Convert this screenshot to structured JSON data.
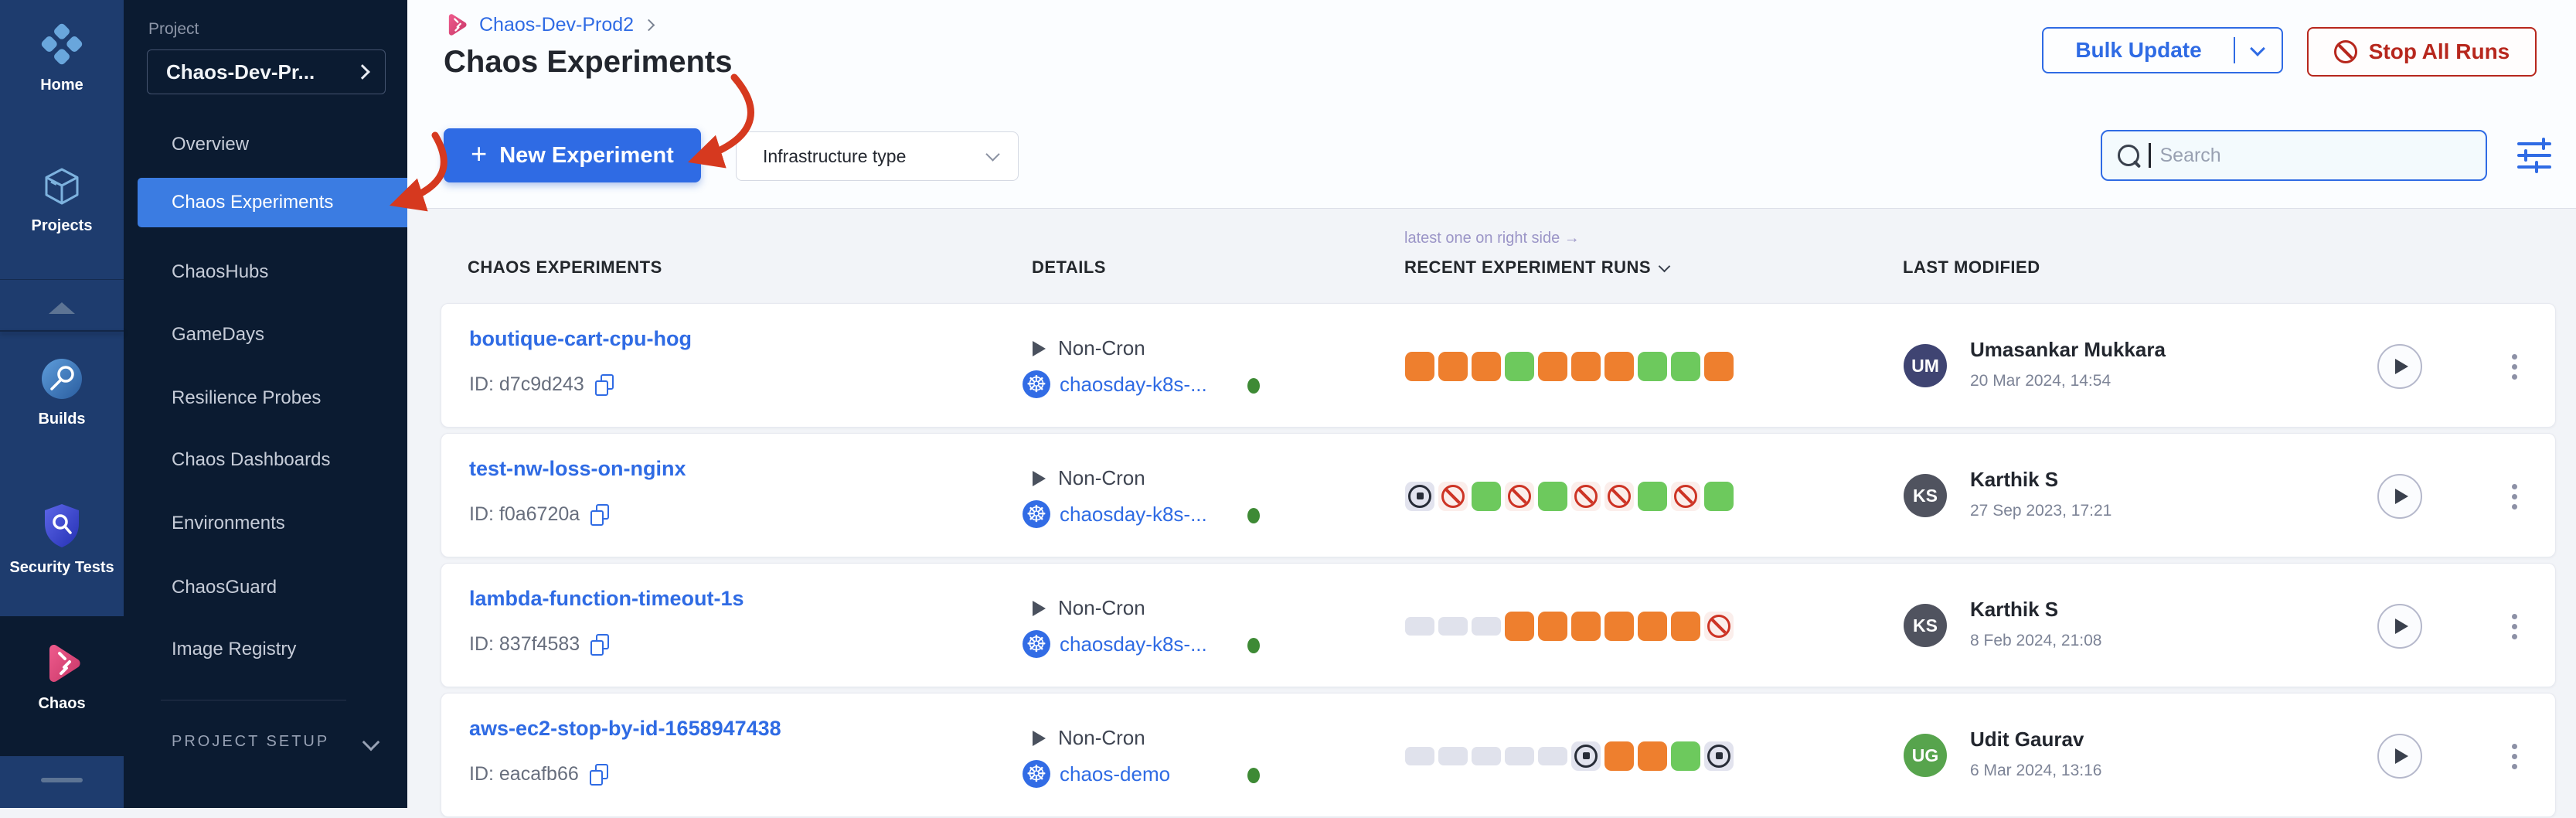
{
  "app": {
    "accent_color": "#2f6be4",
    "danger_color": "#b7271d",
    "annotation_arrow_color": "#d6391f"
  },
  "rail": {
    "items": [
      {
        "id": "home",
        "label": "Home"
      },
      {
        "id": "projects",
        "label": "Projects"
      },
      {
        "id": "builds",
        "label": "Builds"
      },
      {
        "id": "security-tests",
        "label": "Security Tests"
      },
      {
        "id": "chaos",
        "label": "Chaos",
        "selected": true
      }
    ]
  },
  "sidebar": {
    "section_label": "Project",
    "project_name": "Chaos-Dev-Pr...",
    "items": [
      {
        "label": "Overview"
      },
      {
        "label": "Chaos Experiments",
        "selected": true
      },
      {
        "label": "ChaosHubs"
      },
      {
        "label": "GameDays"
      },
      {
        "label": "Resilience Probes"
      },
      {
        "label": "Chaos Dashboards"
      },
      {
        "label": "Environments"
      },
      {
        "label": "ChaosGuard"
      },
      {
        "label": "Image Registry"
      }
    ],
    "footer_label": "PROJECT SETUP"
  },
  "header": {
    "breadcrumb": "Chaos-Dev-Prod2",
    "title": "Chaos Experiments",
    "bulk_update_label": "Bulk Update",
    "stop_all_runs_label": "Stop All Runs"
  },
  "toolbar": {
    "plus_icon": "+",
    "new_experiment_label": "New Experiment",
    "infra_type_label": "Infrastructure type",
    "search_placeholder": "Search"
  },
  "table": {
    "runs_note": "latest one on right side →",
    "columns": {
      "experiments": "CHAOS EXPERIMENTS",
      "details": "DETAILS",
      "runs": "RECENT EXPERIMENT RUNS",
      "modified": "LAST MODIFIED"
    }
  },
  "run_status_colors": {
    "success": "#6dc95d",
    "warning": "#ee7f2e",
    "failed": "#cd3425",
    "stopped": "#2a2f3a",
    "none": "#e0e2ec"
  },
  "rows": [
    {
      "name": "boutique-cart-cpu-hog",
      "id_label": "ID: d7c9d243",
      "schedule": "Non-Cron",
      "infra": "chaosday-k8s-...",
      "runs": [
        "warning",
        "warning",
        "warning",
        "success",
        "warning",
        "warning",
        "warning",
        "success",
        "success",
        "warning"
      ],
      "user": {
        "initials": "UM",
        "name": "Umasankar Mukkara",
        "date": "20 Mar 2024, 14:54",
        "color": "#3f4472"
      }
    },
    {
      "name": "test-nw-loss-on-nginx",
      "id_label": "ID: f0a6720a",
      "schedule": "Non-Cron",
      "infra": "chaosday-k8s-...",
      "runs": [
        "stopped",
        "failed",
        "success",
        "failed",
        "success",
        "failed",
        "failed",
        "success",
        "failed",
        "success"
      ],
      "user": {
        "initials": "KS",
        "name": "Karthik S",
        "date": "27 Sep 2023, 17:21",
        "color": "#50535f"
      }
    },
    {
      "name": "lambda-function-timeout-1s",
      "id_label": "ID: 837f4583",
      "schedule": "Non-Cron",
      "infra": "chaosday-k8s-...",
      "runs": [
        "none",
        "none",
        "none",
        "warning",
        "warning",
        "warning",
        "warning",
        "warning",
        "warning",
        "failed"
      ],
      "user": {
        "initials": "KS",
        "name": "Karthik S",
        "date": "8 Feb 2024, 21:08",
        "color": "#50535f"
      }
    },
    {
      "name": "aws-ec2-stop-by-id-1658947438",
      "id_label": "ID: eacafb66",
      "schedule": "Non-Cron",
      "infra": "chaos-demo",
      "runs": [
        "none",
        "none",
        "none",
        "none",
        "none",
        "stopped",
        "warning",
        "warning",
        "success",
        "stopped"
      ],
      "user": {
        "initials": "UG",
        "name": "Udit Gaurav",
        "date": "6 Mar 2024, 13:16",
        "color": "#57a44d"
      }
    }
  ]
}
